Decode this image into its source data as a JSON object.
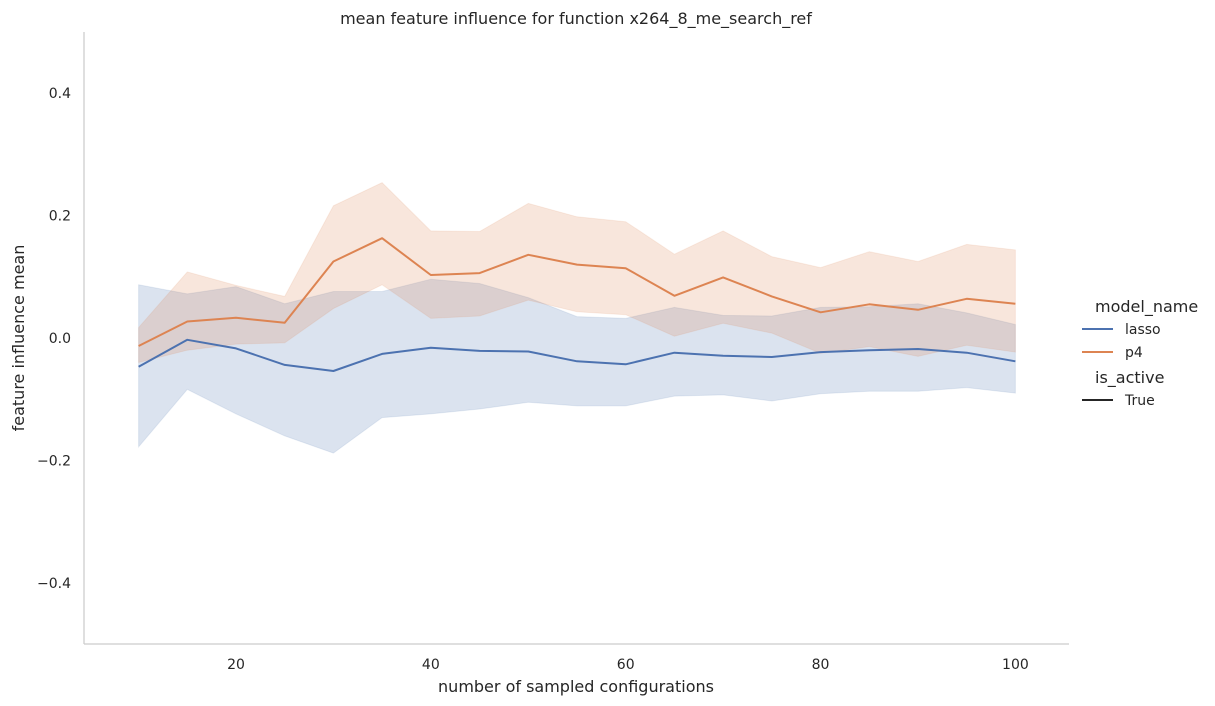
{
  "chart_data": {
    "type": "line",
    "title": "mean feature influence for function x264_8_me_search_ref",
    "xlabel": "number of sampled configurations",
    "ylabel": "feature influence mean",
    "xlim": [
      4.4,
      105.5
    ],
    "ylim": [
      -0.5,
      0.5
    ],
    "xticks": [
      20,
      40,
      60,
      80,
      100
    ],
    "yticks": [
      0.4,
      0.2,
      0.0,
      -0.2,
      -0.4
    ],
    "ytick_labels": [
      "0.4",
      "0.2",
      "0.0",
      "−0.2",
      "−0.4"
    ],
    "x": [
      10,
      15,
      20,
      25,
      30,
      35,
      40,
      45,
      50,
      55,
      60,
      65,
      70,
      75,
      80,
      85,
      90,
      95,
      100
    ],
    "series": [
      {
        "name": "lasso",
        "color": "#4c72b0",
        "values": [
          -0.047,
          -0.003,
          -0.017,
          -0.044,
          -0.054,
          -0.026,
          -0.016,
          -0.021,
          -0.022,
          -0.038,
          -0.043,
          -0.024,
          -0.029,
          -0.031,
          -0.023,
          -0.02,
          -0.018,
          -0.024,
          -0.038
        ],
        "lower": [
          -0.178,
          -0.084,
          -0.124,
          -0.16,
          -0.188,
          -0.13,
          -0.124,
          -0.116,
          -0.105,
          -0.111,
          -0.111,
          -0.095,
          -0.093,
          -0.103,
          -0.091,
          -0.087,
          -0.087,
          -0.081,
          -0.09
        ],
        "upper": [
          0.087,
          0.072,
          0.084,
          0.056,
          0.076,
          0.076,
          0.096,
          0.089,
          0.066,
          0.035,
          0.032,
          0.05,
          0.037,
          0.036,
          0.05,
          0.051,
          0.056,
          0.041,
          0.022
        ]
      },
      {
        "name": "p4",
        "color": "#dd8452",
        "values": [
          -0.013,
          0.027,
          0.033,
          0.025,
          0.125,
          0.163,
          0.103,
          0.106,
          0.136,
          0.12,
          0.114,
          0.069,
          0.099,
          0.068,
          0.042,
          0.055,
          0.046,
          0.064,
          0.056
        ],
        "lower": [
          -0.04,
          -0.02,
          -0.01,
          -0.008,
          0.048,
          0.087,
          0.032,
          0.036,
          0.062,
          0.043,
          0.038,
          0.003,
          0.024,
          0.008,
          -0.025,
          -0.014,
          -0.03,
          -0.012,
          -0.023
        ],
        "upper": [
          0.017,
          0.108,
          0.086,
          0.068,
          0.216,
          0.254,
          0.175,
          0.174,
          0.22,
          0.198,
          0.19,
          0.137,
          0.175,
          0.133,
          0.115,
          0.141,
          0.125,
          0.153,
          0.144
        ]
      }
    ],
    "legend": {
      "placement": "right",
      "hue_title": "model_name",
      "style_title": "is_active",
      "style_entries": [
        "True"
      ],
      "style_color": "#262626"
    },
    "grid": false
  }
}
